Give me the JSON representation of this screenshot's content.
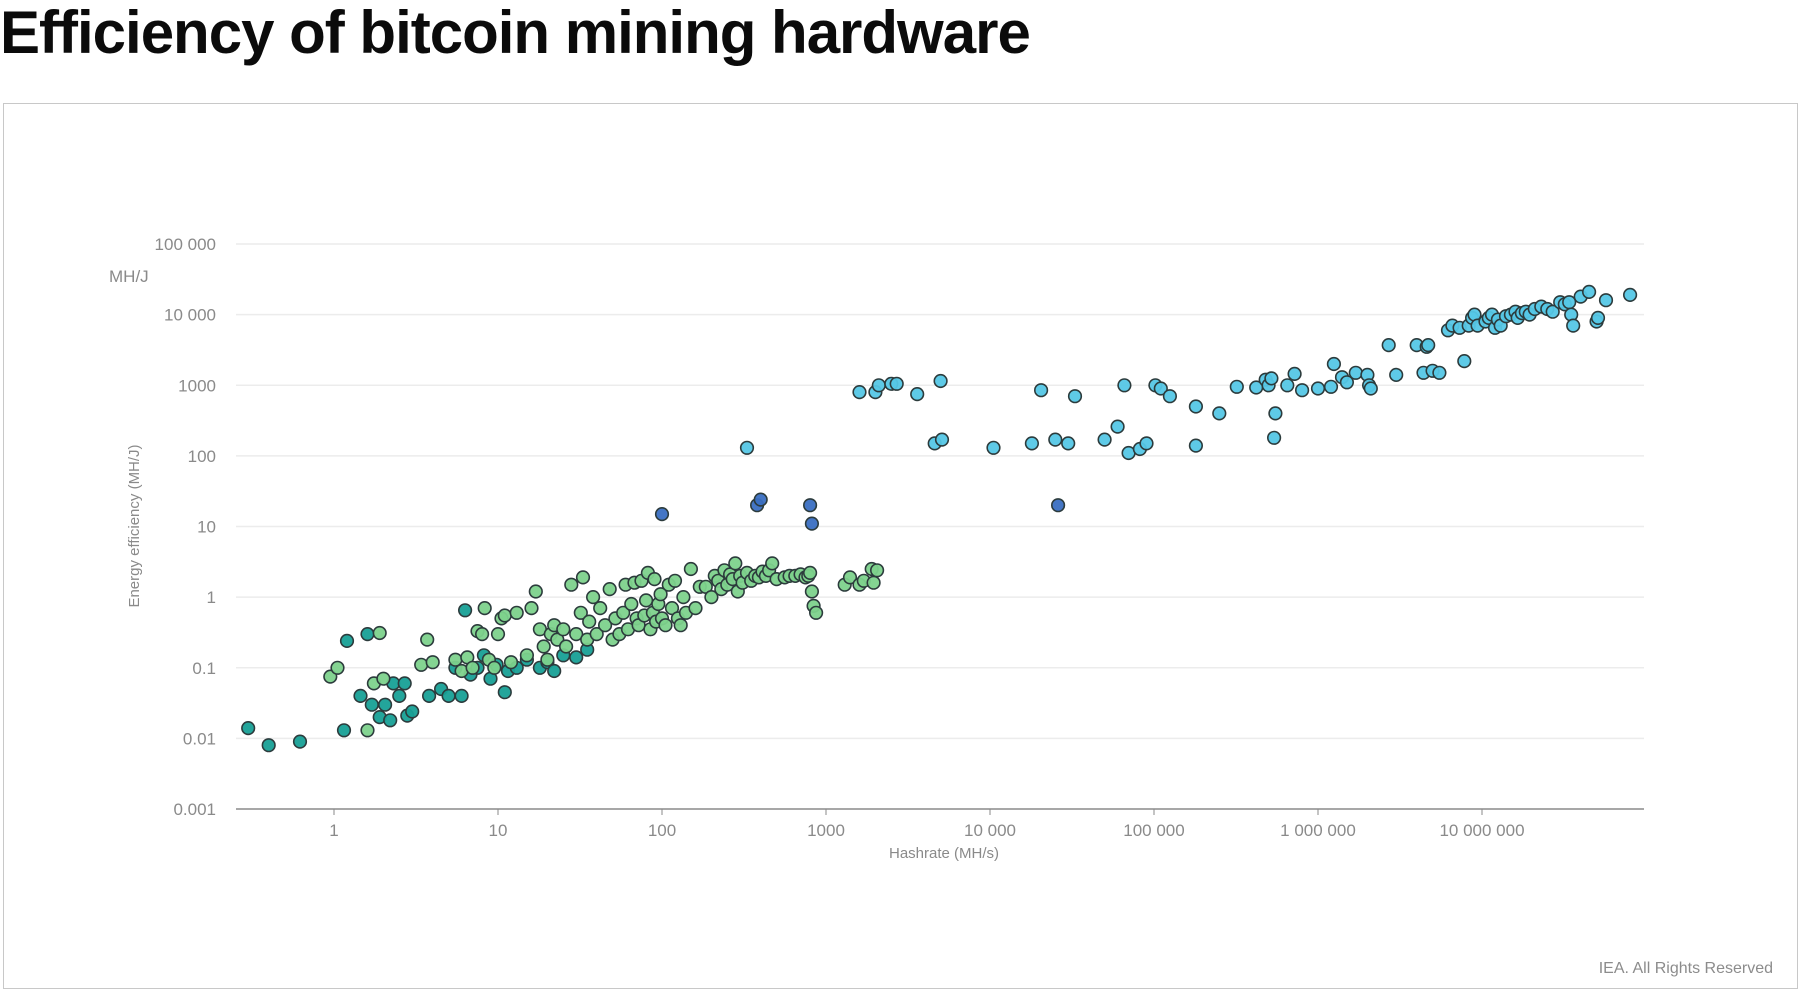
{
  "title": "Efficiency of bitcoin mining hardware",
  "credit": "IEA. All Rights Reserved",
  "chart_data": {
    "type": "scatter",
    "title": "Efficiency of bitcoin mining hardware",
    "xlabel": "Hashrate (MH/s)",
    "ylabel": "Energy efficiency (MH/J)",
    "yunit": "MH/J",
    "xscale": "log",
    "yscale": "log",
    "xlim": [
      0.15,
      150000000
    ],
    "ylim": [
      0.001,
      100000
    ],
    "x_ticks": [
      {
        "value": 1,
        "label": "1"
      },
      {
        "value": 10,
        "label": "10"
      },
      {
        "value": 100,
        "label": "100"
      },
      {
        "value": 1000,
        "label": "1000"
      },
      {
        "value": 10000,
        "label": "10 000"
      },
      {
        "value": 100000,
        "label": "100 000"
      },
      {
        "value": 1000000,
        "label": "1 000 000"
      },
      {
        "value": 10000000,
        "label": "10 000 000"
      }
    ],
    "y_ticks": [
      {
        "value": 0.001,
        "label": "0.001"
      },
      {
        "value": 0.01,
        "label": "0.01"
      },
      {
        "value": 0.1,
        "label": "0.1"
      },
      {
        "value": 1,
        "label": "1"
      },
      {
        "value": 10,
        "label": "10"
      },
      {
        "value": 100,
        "label": "100"
      },
      {
        "value": 1000,
        "label": "1000"
      },
      {
        "value": 10000,
        "label": "10 000"
      },
      {
        "value": 100000,
        "label": "100 000"
      }
    ],
    "grid": "horizontal",
    "legend": "none",
    "series": [
      {
        "color": "#17a096",
        "points": [
          [
            0.3,
            0.014
          ],
          [
            0.4,
            0.008
          ],
          [
            0.62,
            0.009
          ],
          [
            1.15,
            0.013
          ],
          [
            1.2,
            0.24
          ],
          [
            1.45,
            0.04
          ],
          [
            1.6,
            0.3
          ],
          [
            1.7,
            0.03
          ],
          [
            1.9,
            0.02
          ],
          [
            2.05,
            0.03
          ],
          [
            2.2,
            0.018
          ],
          [
            2.3,
            0.06
          ],
          [
            2.5,
            0.04
          ],
          [
            2.7,
            0.06
          ],
          [
            2.8,
            0.021
          ],
          [
            3.0,
            0.024
          ],
          [
            3.8,
            0.04
          ],
          [
            4.5,
            0.05
          ],
          [
            5.0,
            0.04
          ],
          [
            5.5,
            0.1
          ],
          [
            6.0,
            0.04
          ],
          [
            6.3,
            0.65
          ],
          [
            6.8,
            0.08
          ],
          [
            7.5,
            0.1
          ],
          [
            8.2,
            0.15
          ],
          [
            9.0,
            0.07
          ],
          [
            9.8,
            0.11
          ],
          [
            11.0,
            0.045
          ],
          [
            11.5,
            0.09
          ],
          [
            13.0,
            0.1
          ],
          [
            15.0,
            0.13
          ],
          [
            18.0,
            0.1
          ],
          [
            20.0,
            0.12
          ],
          [
            22.0,
            0.09
          ],
          [
            25.0,
            0.15
          ],
          [
            30.0,
            0.14
          ],
          [
            35.0,
            0.18
          ]
        ]
      },
      {
        "color": "#7dd28c",
        "points": [
          [
            0.95,
            0.075
          ],
          [
            1.05,
            0.1
          ],
          [
            1.6,
            0.013
          ],
          [
            1.75,
            0.06
          ],
          [
            1.9,
            0.31
          ],
          [
            2.0,
            0.07
          ],
          [
            3.4,
            0.11
          ],
          [
            3.7,
            0.25
          ],
          [
            4.0,
            0.12
          ],
          [
            5.5,
            0.13
          ],
          [
            6.0,
            0.09
          ],
          [
            6.5,
            0.14
          ],
          [
            7.0,
            0.1
          ],
          [
            7.5,
            0.33
          ],
          [
            8.0,
            0.3
          ],
          [
            8.3,
            0.7
          ],
          [
            8.8,
            0.13
          ],
          [
            9.5,
            0.1
          ],
          [
            10.0,
            0.3
          ],
          [
            10.5,
            0.5
          ],
          [
            11.0,
            0.55
          ],
          [
            12.0,
            0.12
          ],
          [
            13.0,
            0.6
          ],
          [
            15.0,
            0.15
          ],
          [
            16.0,
            0.7
          ],
          [
            17.0,
            1.2
          ],
          [
            18.0,
            0.35
          ],
          [
            19.0,
            0.2
          ],
          [
            20.0,
            0.13
          ],
          [
            21.0,
            0.3
          ],
          [
            22.0,
            0.4
          ],
          [
            23.0,
            0.25
          ],
          [
            25.0,
            0.35
          ],
          [
            26.0,
            0.2
          ],
          [
            28.0,
            1.5
          ],
          [
            30.0,
            0.3
          ],
          [
            32.0,
            0.6
          ],
          [
            33.0,
            1.9
          ],
          [
            35.0,
            0.25
          ],
          [
            36.0,
            0.45
          ],
          [
            38.0,
            1.0
          ],
          [
            40.0,
            0.3
          ],
          [
            42.0,
            0.7
          ],
          [
            45.0,
            0.4
          ],
          [
            48.0,
            1.3
          ],
          [
            50.0,
            0.25
          ],
          [
            52.0,
            0.5
          ],
          [
            55.0,
            0.3
          ],
          [
            58.0,
            0.6
          ],
          [
            60.0,
            1.5
          ],
          [
            62.0,
            0.35
          ],
          [
            65.0,
            0.8
          ],
          [
            68.0,
            1.6
          ],
          [
            70.0,
            0.5
          ],
          [
            72.0,
            0.4
          ],
          [
            75.0,
            1.7
          ],
          [
            78.0,
            0.55
          ],
          [
            80.0,
            0.9
          ],
          [
            82.0,
            2.2
          ],
          [
            85.0,
            0.35
          ],
          [
            88.0,
            0.6
          ],
          [
            90.0,
            1.8
          ],
          [
            92.0,
            0.45
          ],
          [
            95.0,
            0.8
          ],
          [
            98.0,
            1.1
          ],
          [
            100.0,
            0.5
          ],
          [
            105.0,
            0.4
          ],
          [
            110.0,
            1.5
          ],
          [
            115.0,
            0.7
          ],
          [
            120.0,
            1.7
          ],
          [
            125.0,
            0.5
          ],
          [
            130.0,
            0.4
          ],
          [
            135.0,
            1.0
          ],
          [
            140.0,
            0.6
          ],
          [
            150.0,
            2.5
          ],
          [
            160.0,
            0.7
          ],
          [
            170.0,
            1.4
          ],
          [
            185.0,
            1.4
          ],
          [
            200.0,
            1.0
          ],
          [
            210.0,
            2.0
          ],
          [
            220.0,
            1.7
          ],
          [
            230.0,
            1.3
          ],
          [
            240.0,
            2.4
          ],
          [
            250.0,
            1.5
          ],
          [
            260.0,
            2.1
          ],
          [
            270.0,
            1.8
          ],
          [
            280.0,
            3.0
          ],
          [
            290.0,
            1.2
          ],
          [
            300.0,
            2.0
          ],
          [
            310.0,
            1.6
          ],
          [
            330.0,
            2.2
          ],
          [
            350.0,
            1.7
          ],
          [
            370.0,
            2.0
          ],
          [
            390.0,
            1.9
          ],
          [
            410.0,
            2.3
          ],
          [
            430.0,
            2.0
          ],
          [
            450.0,
            2.4
          ],
          [
            470.0,
            3.0
          ],
          [
            500.0,
            1.8
          ],
          [
            560.0,
            1.9
          ],
          [
            600.0,
            2.0
          ],
          [
            650.0,
            2.0
          ],
          [
            700.0,
            2.1
          ],
          [
            750.0,
            1.9
          ],
          [
            780.0,
            2.0
          ],
          [
            800.0,
            2.2
          ],
          [
            820.0,
            1.2
          ],
          [
            840.0,
            0.75
          ],
          [
            870.0,
            0.6
          ],
          [
            1300.0,
            1.5
          ],
          [
            1400.0,
            1.9
          ],
          [
            1600.0,
            1.5
          ],
          [
            1700.0,
            1.7
          ],
          [
            1900.0,
            2.5
          ],
          [
            1950.0,
            1.6
          ],
          [
            2050.0,
            2.4
          ]
        ]
      },
      {
        "color": "#3a6fc2",
        "points": [
          [
            100,
            15
          ],
          [
            380,
            20
          ],
          [
            400,
            24
          ],
          [
            800,
            20
          ],
          [
            820,
            11
          ],
          [
            26000,
            20
          ]
        ]
      },
      {
        "color": "#55c7e6",
        "points": [
          [
            330,
            130
          ],
          [
            1600,
            800
          ],
          [
            2000,
            800
          ],
          [
            2100,
            1000
          ],
          [
            2500,
            1050
          ],
          [
            2700,
            1050
          ],
          [
            3600,
            750
          ],
          [
            4600,
            150
          ],
          [
            5000,
            1150
          ],
          [
            5100,
            170
          ],
          [
            10500,
            130
          ],
          [
            18000,
            150
          ],
          [
            20500,
            850
          ],
          [
            25000,
            170
          ],
          [
            30000,
            150
          ],
          [
            33000,
            700
          ],
          [
            50000,
            170
          ],
          [
            60000,
            260
          ],
          [
            66000,
            1000
          ],
          [
            70000,
            110
          ],
          [
            82000,
            125
          ],
          [
            90000,
            150
          ],
          [
            102000,
            1000
          ],
          [
            110000,
            900
          ],
          [
            125000,
            700
          ],
          [
            180000,
            500
          ],
          [
            180000,
            140
          ],
          [
            250000,
            400
          ],
          [
            320000,
            950
          ],
          [
            420000,
            930
          ],
          [
            480000,
            1200
          ],
          [
            500000,
            1000
          ],
          [
            520000,
            1250
          ],
          [
            540000,
            180
          ],
          [
            550000,
            400
          ],
          [
            650000,
            1000
          ],
          [
            720000,
            1450
          ],
          [
            800000,
            850
          ],
          [
            1000000,
            900
          ],
          [
            1200000,
            950
          ],
          [
            1250000,
            2000
          ],
          [
            1400000,
            1300
          ],
          [
            1500000,
            1100
          ],
          [
            1700000,
            1500
          ],
          [
            2000000,
            1400
          ],
          [
            2050000,
            1000
          ],
          [
            2100000,
            900
          ],
          [
            2700000,
            3700
          ],
          [
            3000000,
            1400
          ],
          [
            4000000,
            3700
          ],
          [
            4400000,
            1500
          ],
          [
            4600000,
            3500
          ],
          [
            4700000,
            3700
          ],
          [
            5000000,
            1600
          ],
          [
            5500000,
            1500
          ],
          [
            6200000,
            6000
          ],
          [
            6600000,
            7000
          ],
          [
            7300000,
            6500
          ],
          [
            7800000,
            2200
          ],
          [
            8300000,
            7000
          ],
          [
            8700000,
            9000
          ],
          [
            9000000,
            10000
          ],
          [
            9400000,
            7000
          ],
          [
            10500000,
            8000
          ],
          [
            11000000,
            9000
          ],
          [
            11500000,
            10000
          ],
          [
            12000000,
            6500
          ],
          [
            12500000,
            8500
          ],
          [
            13000000,
            7000
          ],
          [
            14000000,
            9500
          ],
          [
            15000000,
            10000
          ],
          [
            16000000,
            11000
          ],
          [
            16500000,
            9000
          ],
          [
            17500000,
            10500
          ],
          [
            18500000,
            11000
          ],
          [
            19500000,
            10000
          ],
          [
            21000000,
            12000
          ],
          [
            23000000,
            13000
          ],
          [
            25000000,
            12000
          ],
          [
            27000000,
            11000
          ],
          [
            30000000,
            15000
          ],
          [
            32000000,
            14000
          ],
          [
            34000000,
            15000
          ],
          [
            35000000,
            10000
          ],
          [
            36000000,
            7000
          ],
          [
            40000000,
            18000
          ],
          [
            45000000,
            21000
          ],
          [
            50000000,
            8000
          ],
          [
            51000000,
            9000
          ],
          [
            57000000,
            16000
          ],
          [
            80000000,
            19000
          ]
        ]
      }
    ]
  }
}
